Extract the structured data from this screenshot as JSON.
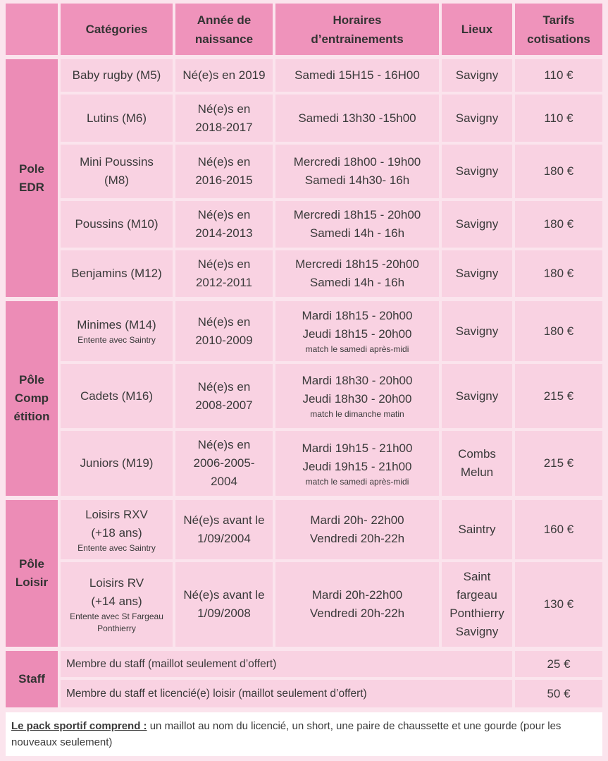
{
  "header": [
    "Catégories",
    "Année de\nnaissance",
    "Horaires\nd’entrainements",
    "Lieux",
    "Tarifs\ncotisations"
  ],
  "groups": [
    {
      "label": "Pole\nEDR",
      "rows": [
        {
          "category": "Baby rugby (M5)",
          "birth": "Né(e)s en 2019",
          "schedule": "Samedi 15H15 - 16H00",
          "place": "Savigny",
          "fee": "110 €"
        },
        {
          "category": "Lutins (M6)",
          "birth": "Né(e)s en\n2018-2017",
          "schedule": "Samedi 13h30 -15h00",
          "place": "Savigny",
          "fee": "110 €"
        },
        {
          "category": "Mini Poussins\n(M8)",
          "birth": "Né(e)s en\n2016-2015",
          "schedule": "Mercredi 18h00 - 19h00\nSamedi 14h30- 16h",
          "place": "Savigny",
          "fee": "180 €"
        },
        {
          "category": "Poussins (M10)",
          "birth": "Né(e)s  en\n2014-2013",
          "schedule": "Mercredi 18h15 - 20h00\nSamedi 14h - 16h",
          "place": "Savigny",
          "fee": "180 €"
        },
        {
          "category": "Benjamins (M12)",
          "birth": "Né(e)s en\n2012-2011",
          "schedule": "Mercredi 18h15 -20h00\nSamedi 14h - 16h",
          "place": "Savigny",
          "fee": "180 €"
        }
      ]
    },
    {
      "label": "Pôle\nComp\nétition",
      "rows": [
        {
          "category": "Minimes (M14)",
          "category_note": "Entente avec Saintry",
          "birth": "Né(e)s en\n2010-2009",
          "schedule": "Mardi 18h15 - 20h00\nJeudi 18h15 - 20h00",
          "schedule_note": "match le samedi après-midi",
          "place": "Savigny",
          "fee": "180 €"
        },
        {
          "category": "Cadets (M16)",
          "birth": "Né(e)s en\n2008-2007",
          "schedule": "Mardi 18h30 - 20h00\nJeudi 18h30 - 20h00",
          "schedule_note": "match le dimanche matin",
          "place": "Savigny",
          "fee": "215 €"
        },
        {
          "category": "Juniors (M19)",
          "birth": "Né(e)s en\n2006-2005-\n2004",
          "schedule": "Mardi 19h15 - 21h00\nJeudi 19h15 - 21h00",
          "schedule_note": "match le samedi après-midi",
          "place": "Combs\nMelun",
          "fee": "215 €"
        }
      ]
    },
    {
      "label": "Pôle\nLoisir",
      "rows": [
        {
          "category": "Loisirs RXV\n(+18 ans)",
          "category_note": "Entente avec Saintry",
          "birth": "Né(e)s avant le\n1/09/2004",
          "schedule": "Mardi 20h- 22h00\nVendredi 20h-22h",
          "place": "Saintry",
          "fee": "160 €"
        },
        {
          "category": "Loisirs RV\n(+14 ans)",
          "category_note": "Entente avec St Fargeau\nPonthierry",
          "birth": "Né(e)s avant le\n1/09/2008",
          "schedule": "Mardi 20h-22h00\nVendredi 20h-22h",
          "place": "Saint\nfargeau\nPonthierry\nSavigny",
          "fee": "130 €"
        }
      ]
    }
  ],
  "staff": {
    "label": "Staff",
    "rows": [
      {
        "description": "Membre du staff (maillot seulement d’offert)",
        "fee": "25 €"
      },
      {
        "description": "Membre du staff et licencié(e) loisir (maillot seulement d’offert)",
        "fee": "50 €"
      }
    ]
  },
  "footer": {
    "label": "Le pack sportif comprend :",
    "text": " un maillot au nom du licencié, un short, une paire de chaussette et une gourde (pour les nouveaux seulement)"
  }
}
